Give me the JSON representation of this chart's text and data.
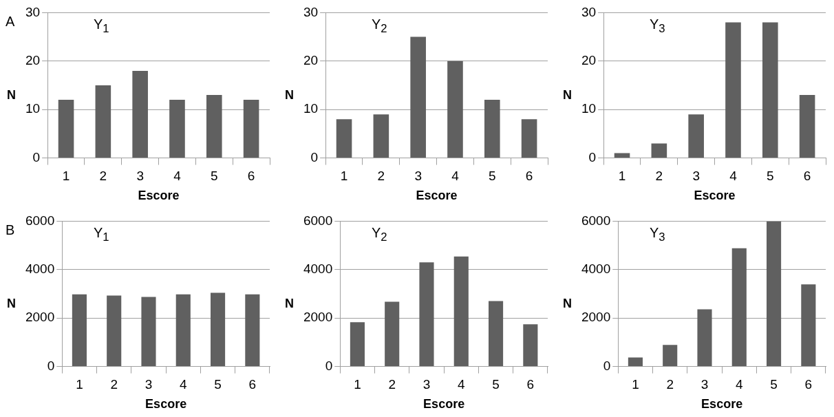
{
  "chart_data": [
    {
      "type": "bar",
      "title": "Y$_{1}$",
      "annotations": [
        "A"
      ],
      "xlabel": "Escore",
      "ylabel": "N",
      "categories": [
        "1",
        "2",
        "3",
        "4",
        "5",
        "6"
      ],
      "values": [
        12,
        15,
        18,
        12,
        13,
        12
      ],
      "color": "#606060",
      "ylim": [
        0,
        30
      ],
      "yticks": [
        0,
        10,
        20,
        30
      ],
      "grid": "y"
    },
    {
      "type": "bar",
      "title": "Y$_{2}$",
      "xlabel": "Escore",
      "ylabel": "N",
      "categories": [
        "1",
        "2",
        "3",
        "4",
        "5",
        "6"
      ],
      "values": [
        8,
        9,
        25,
        20,
        12,
        8
      ],
      "color": "#606060",
      "ylim": [
        0,
        30
      ],
      "yticks": [
        0,
        10,
        20,
        30
      ],
      "grid": "y"
    },
    {
      "type": "bar",
      "title": "Y$_{3}$",
      "xlabel": "Escore",
      "ylabel": "N",
      "categories": [
        "1",
        "2",
        "3",
        "4",
        "5",
        "6"
      ],
      "values": [
        1,
        3,
        9,
        28,
        28,
        13
      ],
      "color": "#606060",
      "ylim": [
        0,
        30
      ],
      "yticks": [
        0,
        10,
        20,
        30
      ],
      "grid": "y"
    },
    {
      "type": "bar",
      "title": "Y$_{1}$",
      "annotations": [
        "B"
      ],
      "xlabel": "Escore",
      "ylabel": "N",
      "categories": [
        "1",
        "2",
        "3",
        "4",
        "5",
        "6"
      ],
      "values": [
        2980,
        2930,
        2870,
        2980,
        3040,
        2980
      ],
      "color": "#606060",
      "ylim": [
        0,
        6000
      ],
      "yticks": [
        0,
        2000,
        4000,
        6000
      ],
      "grid": "y"
    },
    {
      "type": "bar",
      "title": "Y$_{2}$",
      "xlabel": "Escore",
      "ylabel": "N",
      "categories": [
        "1",
        "2",
        "3",
        "4",
        "5",
        "6"
      ],
      "values": [
        1830,
        2670,
        4300,
        4540,
        2700,
        1740
      ],
      "color": "#606060",
      "ylim": [
        0,
        6000
      ],
      "yticks": [
        0,
        2000,
        4000,
        6000
      ],
      "grid": "y"
    },
    {
      "type": "bar",
      "title": "Y$_{3}$",
      "xlabel": "Escore",
      "ylabel": "N",
      "categories": [
        "1",
        "2",
        "3",
        "4",
        "5",
        "6"
      ],
      "values": [
        370,
        890,
        2360,
        4880,
        5990,
        3390
      ],
      "color": "#606060",
      "ylim": [
        0,
        6000
      ],
      "yticks": [
        0,
        2000,
        4000,
        6000
      ],
      "grid": "y"
    }
  ]
}
